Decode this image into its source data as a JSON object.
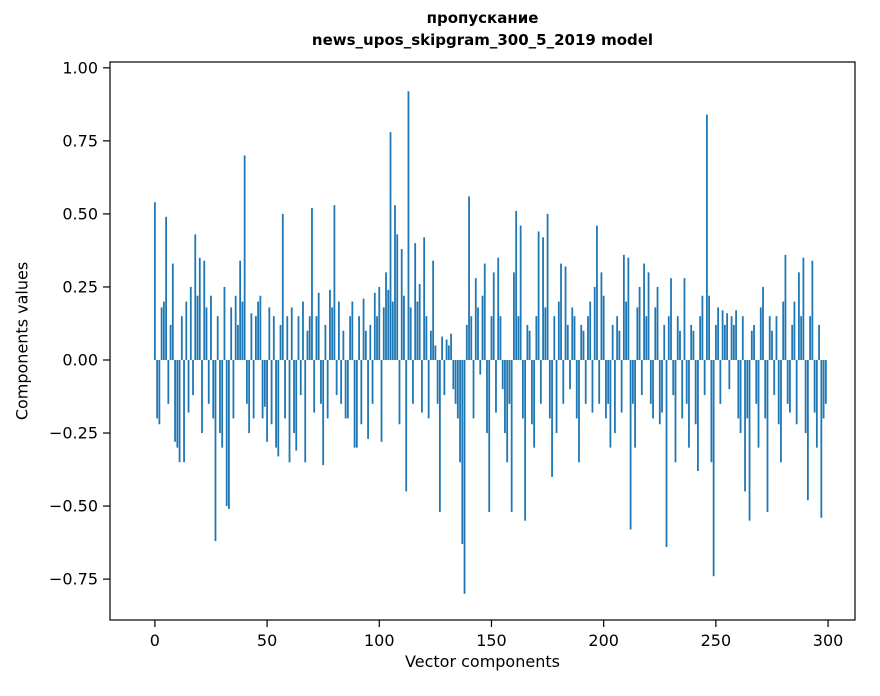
{
  "figure": {
    "title_line1": "пропускание",
    "title_line2": "news_upos_skipgram_300_5_2019 model",
    "xlabel": "Vector components",
    "ylabel": "Components values"
  },
  "chart_data": {
    "type": "bar",
    "title": "пропускание",
    "subtitle": "news_upos_skipgram_300_5_2019 model",
    "xlabel": "Vector components",
    "ylabel": "Components values",
    "legend": "none",
    "grid": false,
    "bar_color": "#1f77b4",
    "axes_color": "#000000",
    "xlim": [
      -20,
      312
    ],
    "ylim": [
      -0.89,
      1.02
    ],
    "xticks": [
      0,
      50,
      100,
      150,
      200,
      250,
      300
    ],
    "xtick_labels": [
      "0",
      "50",
      "100",
      "150",
      "200",
      "250",
      "300"
    ],
    "yticks": [
      -0.75,
      -0.5,
      -0.25,
      0,
      0.25,
      0.5,
      0.75,
      1.0
    ],
    "ytick_labels": [
      "−0.75",
      "−0.50",
      "−0.25",
      "0.00",
      "0.25",
      "0.50",
      "0.75",
      "1.00"
    ],
    "bar_width": 0.8,
    "values": [
      0.54,
      -0.2,
      -0.22,
      0.18,
      0.2,
      0.49,
      -0.15,
      0.12,
      0.33,
      -0.28,
      -0.3,
      -0.35,
      0.15,
      -0.35,
      0.2,
      -0.18,
      0.25,
      -0.12,
      0.43,
      0.22,
      0.35,
      -0.25,
      0.34,
      0.18,
      -0.15,
      0.22,
      -0.2,
      -0.62,
      0.15,
      -0.25,
      -0.3,
      0.25,
      -0.5,
      -0.51,
      0.18,
      -0.2,
      0.22,
      0.12,
      0.34,
      0.2,
      0.7,
      -0.15,
      -0.25,
      0.16,
      -0.2,
      0.15,
      0.2,
      0.22,
      -0.2,
      -0.16,
      -0.28,
      0.18,
      -0.22,
      0.15,
      -0.3,
      -0.33,
      0.12,
      0.5,
      -0.2,
      0.15,
      -0.35,
      0.18,
      -0.25,
      -0.31,
      0.15,
      -0.12,
      0.2,
      -0.35,
      0.1,
      0.15,
      0.52,
      -0.18,
      0.15,
      0.23,
      -0.15,
      -0.36,
      0.12,
      -0.2,
      0.24,
      0.18,
      0.53,
      -0.12,
      0.2,
      -0.15,
      0.1,
      -0.2,
      -0.2,
      0.15,
      0.2,
      -0.3,
      -0.3,
      0.15,
      -0.22,
      0.21,
      0.1,
      -0.27,
      0.12,
      -0.15,
      0.23,
      0.15,
      0.25,
      -0.28,
      0.18,
      0.3,
      0.24,
      0.78,
      0.2,
      0.53,
      0.43,
      -0.22,
      0.38,
      0.22,
      -0.45,
      0.92,
      0.18,
      -0.15,
      0.4,
      0.2,
      0.26,
      -0.18,
      0.42,
      0.15,
      -0.2,
      0.1,
      0.34,
      0.05,
      -0.15,
      -0.52,
      0.08,
      -0.12,
      0.07,
      0.05,
      0.09,
      -0.1,
      -0.15,
      -0.2,
      -0.35,
      -0.63,
      -0.8,
      0.12,
      0.56,
      0.15,
      -0.2,
      0.28,
      0.18,
      -0.05,
      0.22,
      0.33,
      -0.25,
      -0.52,
      0.15,
      0.3,
      -0.18,
      0.35,
      0.15,
      -0.1,
      -0.25,
      -0.35,
      -0.15,
      -0.52,
      0.3,
      0.51,
      0.15,
      0.46,
      -0.2,
      -0.55,
      0.12,
      0.1,
      -0.22,
      -0.3,
      0.15,
      0.44,
      -0.15,
      0.42,
      0.18,
      0.5,
      -0.2,
      -0.4,
      0.15,
      -0.25,
      0.2,
      0.33,
      -0.15,
      0.32,
      0.12,
      -0.1,
      0.18,
      0.15,
      -0.2,
      -0.35,
      0.12,
      0.1,
      -0.15,
      0.15,
      0.2,
      -0.18,
      0.25,
      0.46,
      -0.15,
      0.3,
      0.22,
      -0.2,
      -0.15,
      -0.3,
      0.12,
      -0.25,
      0.15,
      0.1,
      -0.18,
      0.36,
      0.2,
      0.35,
      -0.58,
      -0.15,
      -0.3,
      0.18,
      0.25,
      -0.12,
      0.33,
      0.15,
      0.3,
      -0.15,
      -0.2,
      0.18,
      0.25,
      -0.22,
      -0.18,
      0.12,
      -0.64,
      0.15,
      0.28,
      -0.12,
      -0.35,
      0.15,
      0.1,
      -0.2,
      0.28,
      -0.15,
      -0.3,
      0.12,
      0.1,
      -0.22,
      -0.38,
      0.15,
      0.22,
      -0.12,
      0.84,
      0.22,
      -0.35,
      -0.74,
      0.12,
      0.18,
      -0.15,
      0.17,
      0.12,
      0.16,
      -0.1,
      0.15,
      0.12,
      0.17,
      -0.2,
      -0.25,
      0.15,
      -0.45,
      -0.2,
      -0.55,
      0.1,
      0.12,
      -0.15,
      -0.3,
      0.18,
      0.25,
      -0.2,
      -0.52,
      0.15,
      0.1,
      -0.12,
      0.15,
      -0.22,
      -0.35,
      0.2,
      0.36,
      -0.15,
      -0.18,
      0.12,
      0.2,
      -0.22,
      0.3,
      0.15,
      0.35,
      -0.25,
      -0.48,
      0.15,
      0.34,
      -0.18,
      -0.3,
      0.12,
      -0.54,
      -0.2,
      -0.15
    ]
  }
}
